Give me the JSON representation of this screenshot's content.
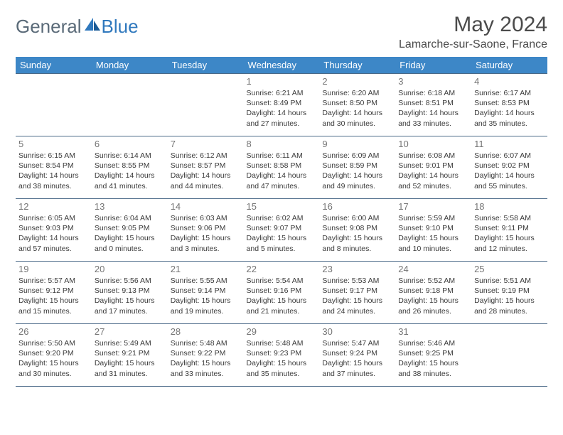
{
  "logo": {
    "part1": "General",
    "part2": "Blue"
  },
  "title": "May 2024",
  "location": "Lamarche-sur-Saone, France",
  "header_bg": "#3d87c7",
  "border_color": "#4b6a88",
  "weekdays": [
    "Sunday",
    "Monday",
    "Tuesday",
    "Wednesday",
    "Thursday",
    "Friday",
    "Saturday"
  ],
  "weeks": [
    [
      null,
      null,
      null,
      {
        "n": "1",
        "sr": "6:21 AM",
        "ss": "8:49 PM",
        "dl": "14 hours and 27 minutes."
      },
      {
        "n": "2",
        "sr": "6:20 AM",
        "ss": "8:50 PM",
        "dl": "14 hours and 30 minutes."
      },
      {
        "n": "3",
        "sr": "6:18 AM",
        "ss": "8:51 PM",
        "dl": "14 hours and 33 minutes."
      },
      {
        "n": "4",
        "sr": "6:17 AM",
        "ss": "8:53 PM",
        "dl": "14 hours and 35 minutes."
      }
    ],
    [
      {
        "n": "5",
        "sr": "6:15 AM",
        "ss": "8:54 PM",
        "dl": "14 hours and 38 minutes."
      },
      {
        "n": "6",
        "sr": "6:14 AM",
        "ss": "8:55 PM",
        "dl": "14 hours and 41 minutes."
      },
      {
        "n": "7",
        "sr": "6:12 AM",
        "ss": "8:57 PM",
        "dl": "14 hours and 44 minutes."
      },
      {
        "n": "8",
        "sr": "6:11 AM",
        "ss": "8:58 PM",
        "dl": "14 hours and 47 minutes."
      },
      {
        "n": "9",
        "sr": "6:09 AM",
        "ss": "8:59 PM",
        "dl": "14 hours and 49 minutes."
      },
      {
        "n": "10",
        "sr": "6:08 AM",
        "ss": "9:01 PM",
        "dl": "14 hours and 52 minutes."
      },
      {
        "n": "11",
        "sr": "6:07 AM",
        "ss": "9:02 PM",
        "dl": "14 hours and 55 minutes."
      }
    ],
    [
      {
        "n": "12",
        "sr": "6:05 AM",
        "ss": "9:03 PM",
        "dl": "14 hours and 57 minutes."
      },
      {
        "n": "13",
        "sr": "6:04 AM",
        "ss": "9:05 PM",
        "dl": "15 hours and 0 minutes."
      },
      {
        "n": "14",
        "sr": "6:03 AM",
        "ss": "9:06 PM",
        "dl": "15 hours and 3 minutes."
      },
      {
        "n": "15",
        "sr": "6:02 AM",
        "ss": "9:07 PM",
        "dl": "15 hours and 5 minutes."
      },
      {
        "n": "16",
        "sr": "6:00 AM",
        "ss": "9:08 PM",
        "dl": "15 hours and 8 minutes."
      },
      {
        "n": "17",
        "sr": "5:59 AM",
        "ss": "9:10 PM",
        "dl": "15 hours and 10 minutes."
      },
      {
        "n": "18",
        "sr": "5:58 AM",
        "ss": "9:11 PM",
        "dl": "15 hours and 12 minutes."
      }
    ],
    [
      {
        "n": "19",
        "sr": "5:57 AM",
        "ss": "9:12 PM",
        "dl": "15 hours and 15 minutes."
      },
      {
        "n": "20",
        "sr": "5:56 AM",
        "ss": "9:13 PM",
        "dl": "15 hours and 17 minutes."
      },
      {
        "n": "21",
        "sr": "5:55 AM",
        "ss": "9:14 PM",
        "dl": "15 hours and 19 minutes."
      },
      {
        "n": "22",
        "sr": "5:54 AM",
        "ss": "9:16 PM",
        "dl": "15 hours and 21 minutes."
      },
      {
        "n": "23",
        "sr": "5:53 AM",
        "ss": "9:17 PM",
        "dl": "15 hours and 24 minutes."
      },
      {
        "n": "24",
        "sr": "5:52 AM",
        "ss": "9:18 PM",
        "dl": "15 hours and 26 minutes."
      },
      {
        "n": "25",
        "sr": "5:51 AM",
        "ss": "9:19 PM",
        "dl": "15 hours and 28 minutes."
      }
    ],
    [
      {
        "n": "26",
        "sr": "5:50 AM",
        "ss": "9:20 PM",
        "dl": "15 hours and 30 minutes."
      },
      {
        "n": "27",
        "sr": "5:49 AM",
        "ss": "9:21 PM",
        "dl": "15 hours and 31 minutes."
      },
      {
        "n": "28",
        "sr": "5:48 AM",
        "ss": "9:22 PM",
        "dl": "15 hours and 33 minutes."
      },
      {
        "n": "29",
        "sr": "5:48 AM",
        "ss": "9:23 PM",
        "dl": "15 hours and 35 minutes."
      },
      {
        "n": "30",
        "sr": "5:47 AM",
        "ss": "9:24 PM",
        "dl": "15 hours and 37 minutes."
      },
      {
        "n": "31",
        "sr": "5:46 AM",
        "ss": "9:25 PM",
        "dl": "15 hours and 38 minutes."
      },
      null
    ]
  ],
  "labels": {
    "sunrise": "Sunrise: ",
    "sunset": "Sunset: ",
    "daylight": "Daylight: "
  }
}
